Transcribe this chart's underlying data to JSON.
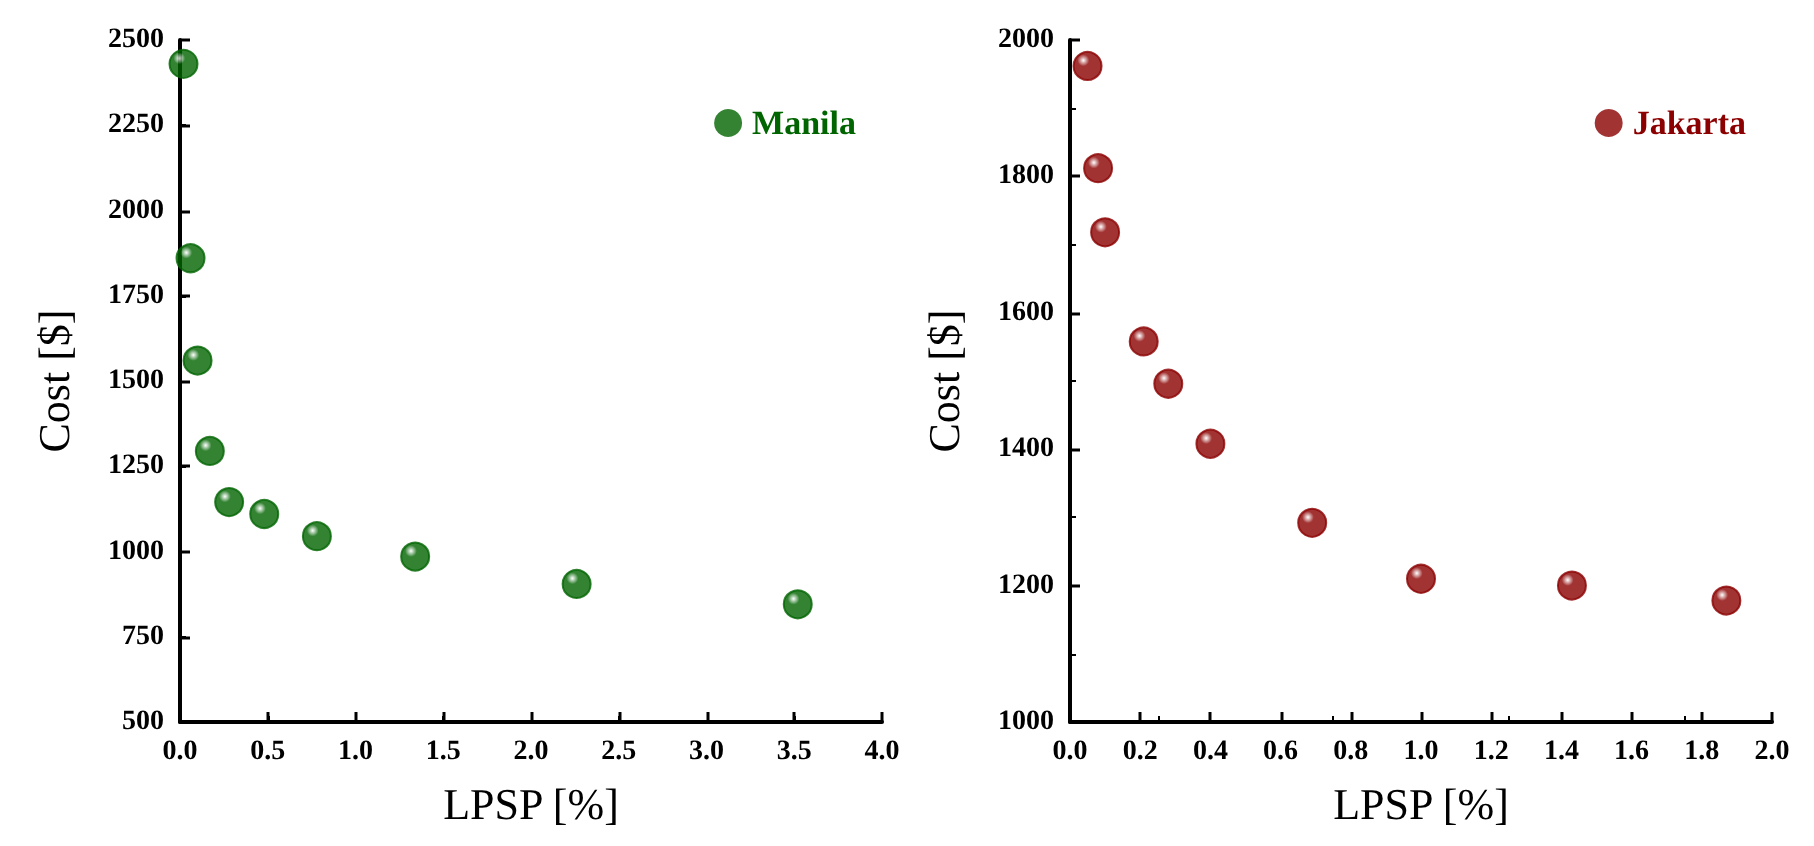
{
  "chart_data": [
    {
      "type": "scatter",
      "xlabel": "LPSP [%]",
      "ylabel": "Cost [$]",
      "xlim": [
        0,
        4
      ],
      "xticks": [
        {
          "value": 0,
          "label": "0.0"
        },
        {
          "value": 0.5,
          "label": "0.5"
        },
        {
          "value": 1,
          "label": "1.0"
        },
        {
          "value": 1.5,
          "label": "1.5"
        },
        {
          "value": 2,
          "label": "2.0"
        },
        {
          "value": 2.5,
          "label": "2.5"
        },
        {
          "value": 3,
          "label": "3.0"
        },
        {
          "value": 3.5,
          "label": "3.5"
        },
        {
          "value": 4,
          "label": "4.0"
        }
      ],
      "ylim": [
        500,
        2500
      ],
      "yticks": [
        500,
        750,
        1000,
        1250,
        1500,
        1750,
        2000,
        2250,
        2500
      ],
      "grid": false,
      "legend": "top right",
      "marker": "circle",
      "series": [
        {
          "name": "Manila",
          "color": "#006400",
          "x": [
            0.02,
            0.06,
            0.1,
            0.17,
            0.28,
            0.48,
            0.78,
            1.34,
            2.26,
            3.52
          ],
          "values": [
            2430,
            1860,
            1560,
            1295,
            1145,
            1110,
            1045,
            985,
            905,
            845
          ]
        }
      ]
    },
    {
      "type": "scatter",
      "xlabel": "LPSP [%]",
      "ylabel": "Cost [$]",
      "xlim": [
        0,
        2
      ],
      "xticks": [
        {
          "value": 0,
          "label": "0.0"
        },
        {
          "value": 0.2,
          "label": "0.2"
        },
        {
          "value": 0.4,
          "label": "0.4"
        },
        {
          "value": 0.6,
          "label": "0.6"
        },
        {
          "value": 0.8,
          "label": "0.8"
        },
        {
          "value": 1,
          "label": "1.0"
        },
        {
          "value": 1.2,
          "label": "1.2"
        },
        {
          "value": 1.4,
          "label": "1.4"
        },
        {
          "value": 1.6,
          "label": "1.6"
        },
        {
          "value": 1.8,
          "label": "1.8"
        },
        {
          "value": 2,
          "label": "2.0"
        }
      ],
      "ylim": [
        1000,
        2000
      ],
      "yticks": [
        1000,
        1200,
        1400,
        1600,
        1800,
        2000
      ],
      "grid": false,
      "legend": "top right",
      "marker": "circle",
      "series": [
        {
          "name": "Jakarta",
          "color": "#8b0000",
          "x": [
            0.05,
            0.08,
            0.1,
            0.21,
            0.28,
            0.4,
            0.69,
            1.0,
            1.43,
            1.87
          ],
          "values": [
            1962,
            1812,
            1718,
            1558,
            1496,
            1408,
            1292,
            1210,
            1200,
            1178
          ]
        }
      ]
    }
  ]
}
